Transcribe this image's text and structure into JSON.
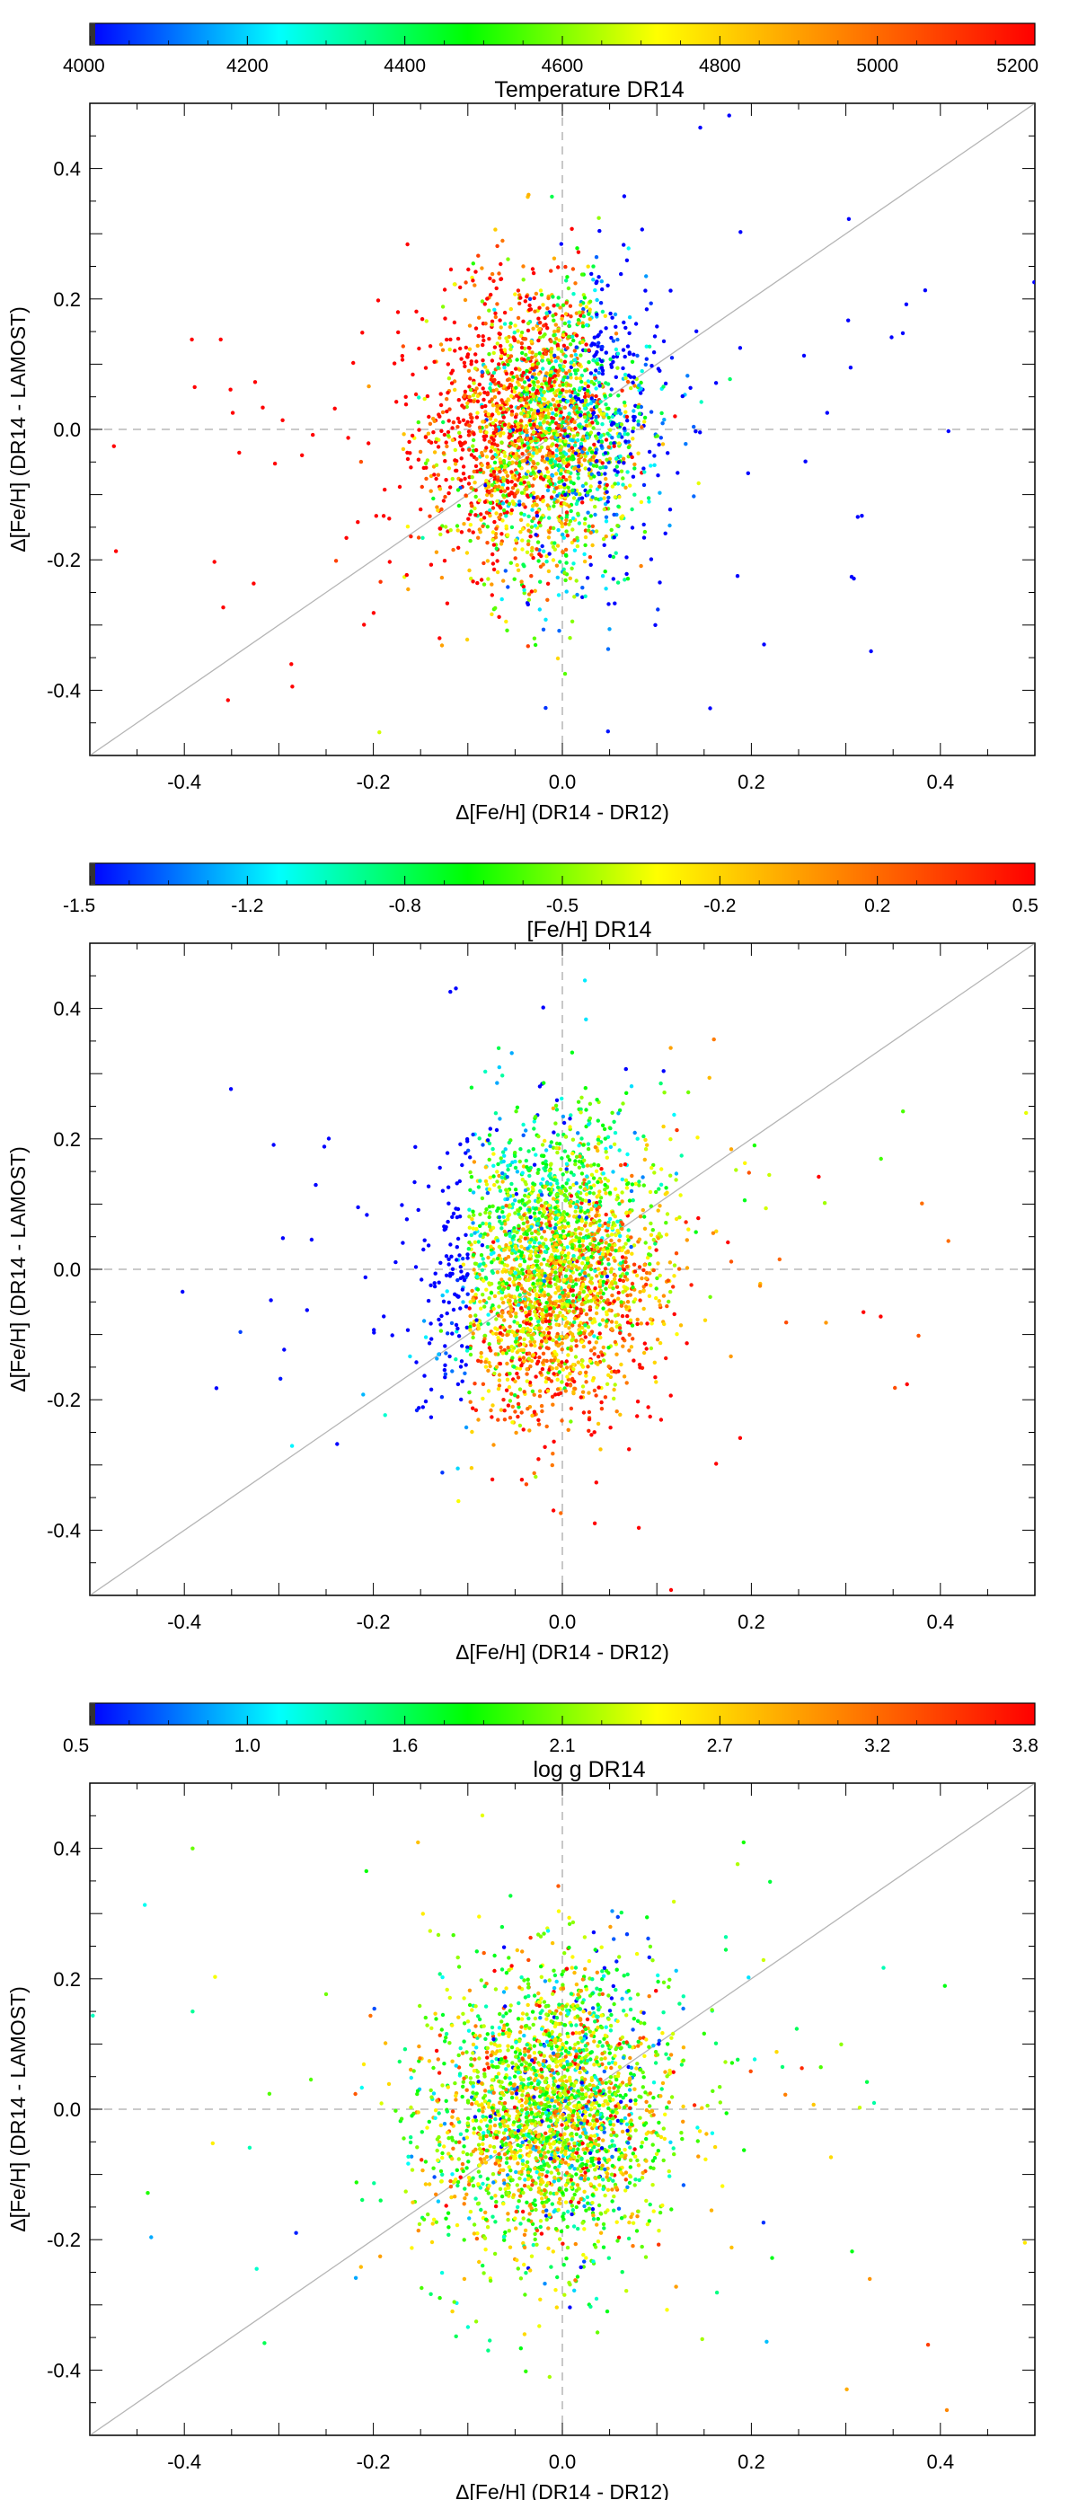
{
  "chart_data": [
    {
      "type": "scatter",
      "title": "Temperature   DR14",
      "xlabel": "Δ[Fe/H] (DR14 - DR12)",
      "ylabel": "Δ[Fe/H] (DR14 - LAMOST)",
      "xlim": [
        -0.5,
        0.5
      ],
      "ylim": [
        -0.5,
        0.5
      ],
      "x_ticks": [
        "-0.4",
        "-0.2",
        "0.0",
        "0.2",
        "0.4"
      ],
      "y_ticks": [
        "-0.4",
        "-0.2",
        "0.0",
        "0.2",
        "0.4"
      ],
      "reference_lines": [
        "x = 0 (dashed)",
        "y = 0 (dashed)",
        "y = x (solid)"
      ],
      "colorbar": {
        "quantity": "Temperature",
        "range": [
          4000,
          5200
        ],
        "tick_labels": [
          "4000",
          "4200",
          "4400",
          "4600",
          "4800",
          "5000",
          "5200"
        ],
        "colormap": [
          "#0000ff",
          "#00ffff",
          "#00ff00",
          "#ffff00",
          "#ff8000",
          "#ff0000"
        ]
      },
      "distribution": {
        "n_points": 2600,
        "x_mean": -0.02,
        "x_sd": 0.055,
        "y_mean": 0.0,
        "y_sd": 0.11,
        "color_model": "a red core at the left of the cloud (x ≈ -0.03, y > 0) grading to green/cyan at the lower right and blue at the upper right (x ≈ 0.05, y ≈ 0.15)"
      }
    },
    {
      "type": "scatter",
      "title": "[Fe/H]   DR14",
      "xlabel": "Δ[Fe/H] (DR14 - DR12)",
      "ylabel": "Δ[Fe/H] (DR14 - LAMOST)",
      "xlim": [
        -0.5,
        0.5
      ],
      "ylim": [
        -0.5,
        0.5
      ],
      "x_ticks": [
        "-0.4",
        "-0.2",
        "0.0",
        "0.2",
        "0.4"
      ],
      "y_ticks": [
        "-0.4",
        "-0.2",
        "0.0",
        "0.2",
        "0.4"
      ],
      "reference_lines": [
        "x = 0 (dashed)",
        "y = 0 (dashed)",
        "y = x (solid)"
      ],
      "colorbar": {
        "quantity": "[Fe/H]",
        "range": [
          -1.5,
          0.5
        ],
        "tick_labels": [
          "-1.5",
          "-1.2",
          "-0.8",
          "-0.5",
          "-0.2",
          "0.2",
          "0.5"
        ],
        "colormap": [
          "#0000ff",
          "#00ffff",
          "#00ff00",
          "#ffff00",
          "#ff8000",
          "#ff0000"
        ]
      },
      "distribution": {
        "n_points": 2600,
        "x_mean": -0.01,
        "x_sd": 0.055,
        "y_mean": 0.0,
        "y_sd": 0.11,
        "color_model": "green/yellow above y = 0 and red below it; a sparse tail of blue/cyan points at negative x (x ≈ -0.15, y ≈ 0.05–0.3)"
      }
    },
    {
      "type": "scatter",
      "title": "log g   DR14",
      "xlabel": "Δ[Fe/H] (DR14 - DR12)",
      "ylabel": "Δ[Fe/H] (DR14 - LAMOST)",
      "xlim": [
        -0.5,
        0.5
      ],
      "ylim": [
        -0.5,
        0.5
      ],
      "x_ticks": [
        "-0.4",
        "-0.2",
        "0.0",
        "0.2",
        "0.4"
      ],
      "y_ticks": [
        "-0.4",
        "-0.2",
        "0.0",
        "0.2",
        "0.4"
      ],
      "reference_lines": [
        "x = 0 (dashed)",
        "y = 0 (dashed)",
        "y = x (solid)"
      ],
      "colorbar": {
        "quantity": "log g",
        "range": [
          0.5,
          3.8
        ],
        "tick_labels": [
          "0.5",
          "1.0",
          "1.6",
          "2.1",
          "2.7",
          "3.2",
          "3.8"
        ],
        "colormap": [
          "#0000ff",
          "#00ffff",
          "#00ff00",
          "#ffff00",
          "#ff8000",
          "#ff0000"
        ]
      },
      "distribution": {
        "n_points": 2600,
        "x_mean": -0.01,
        "x_sd": 0.06,
        "y_mean": 0.0,
        "y_sd": 0.11,
        "color_model": "mostly green/yellow-green, scattered red and blue points in the core, cyan points at the upper right (x ≈ 0.05, y ≈ 0.2)"
      }
    }
  ]
}
